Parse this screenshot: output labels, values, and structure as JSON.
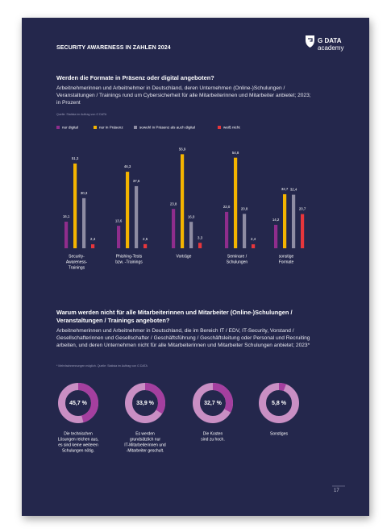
{
  "page_title": "SECURITY AWARENESS IN ZAHLEN 2024",
  "logo": {
    "brand": "G DATA",
    "sub": "academy"
  },
  "page_number": "17",
  "chart_data": [
    {
      "type": "bar",
      "title": "Werden die Formate in Präsenz oder digital angeboten?",
      "subtitle": "Arbeitnehmerinnen und Arbeitnehmer in Deutschland, deren Unternehmen (Online-)Schulungen / Veranstaltungen / Trainings rund um Cybersicherheit für alle Mitarbeiterinnen und Mitarbeiter anbietet; 2023; in Prozent",
      "source": "Quelle: Statista im Auftrag von G DATA",
      "categories": [
        [
          "Security-",
          "Awareness-",
          "Trainings"
        ],
        [
          "Phishing-Tests",
          "bzw. -Trainings"
        ],
        [
          "Vorträge"
        ],
        [
          "Seminare /",
          "Schulungen"
        ],
        [
          "sonstige",
          "Formate"
        ]
      ],
      "series": [
        {
          "name": "nur digital",
          "color": "#8f2d8c",
          "values": [
            16.1,
            13.6,
            23.8,
            22.0,
            14.2
          ],
          "value_labels": [
            "16,1",
            "13,6",
            "23,8",
            "22,0",
            "14,2"
          ]
        },
        {
          "name": "nur in Präsenz",
          "color": "#f4b400",
          "values": [
            51.3,
            46.3,
            56.9,
            54.8,
            32.7
          ],
          "value_labels": [
            "51,3",
            "46,3",
            "56,9",
            "54,8",
            "32,7"
          ]
        },
        {
          "name": "sowohl in Präsenz als auch digital",
          "color": "#8e8ca3",
          "values": [
            30.3,
            37.6,
            16.0,
            20.8,
            32.4
          ],
          "value_labels": [
            "30,3",
            "37,6",
            "16,0",
            "20,8",
            "32,4"
          ]
        },
        {
          "name": "weiß nicht",
          "color": "#e6363c",
          "values": [
            2.4,
            2.5,
            3.3,
            2.4,
            20.7
          ],
          "value_labels": [
            "2,4",
            "2,5",
            "3,3",
            "2,4",
            "20,7"
          ]
        }
      ]
    },
    {
      "type": "donut",
      "title": "Warum werden nicht für alle Mitarbeiterinnen und Mitarbeiter (Online-)Schulungen / Veranstaltungen / Trainings angeboten?",
      "subtitle": "Arbeitnehmerinnen und Arbeitnehmer in Deutschland, die im Bereich IT / EDV, IT-Security, Vorstand / Gesellschafterinnen und Gesellschafter / Geschäftsführung / Geschäftsleitung oder Personal und Recruiting arbeiten, und deren Unternehmen nicht für alle Mitarbeiterinnen und Mitarbeiter Schulungen anbietet; 2023*",
      "source": "* Mehrfachnennungen möglich. Quelle: Statista im Auftrag von G DATA",
      "categories": [
        [
          "Die technischen",
          "Lösungen reichen aus,",
          "es sind keine weiteren",
          "Schulungen nötig."
        ],
        [
          "Es werden",
          "grundsätzlich nur",
          "IT-Mitarbeiterinnen und",
          "-Mitarbeiter geschult."
        ],
        [
          "Die Kosten",
          "sind zu hoch."
        ],
        [
          "Sonstiges"
        ]
      ],
      "values": [
        45.7,
        33.9,
        32.7,
        5.8
      ],
      "value_labels": [
        "45,7 %",
        "33,9 %",
        "32,7 %",
        "5,8 %"
      ],
      "color": "#a43f9f",
      "track_color": "#c98fc4"
    }
  ]
}
